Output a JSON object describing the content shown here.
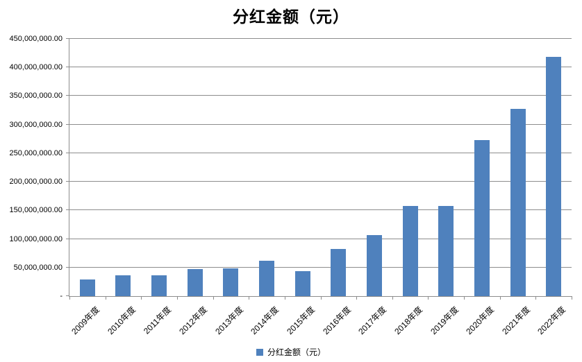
{
  "title": "分红金额（元）",
  "legend": {
    "label": "分红金额（元）"
  },
  "colors": {
    "bar": "#4F81BD",
    "grid": "#8C8C8C",
    "axis": "#8C8C8C",
    "text": "#000000"
  },
  "chart_data": {
    "type": "bar",
    "title": "分红金额（元）",
    "series_name": "分红金额（元）",
    "categories": [
      "2009年度",
      "2010年度",
      "2011年度",
      "2012年度",
      "2013年度",
      "2014年度",
      "2015年度",
      "2016年度",
      "2017年度",
      "2018年度",
      "2019年度",
      "2020年度",
      "2021年度",
      "2022年度"
    ],
    "values": [
      29000000,
      37000000,
      37000000,
      47000000,
      48000000,
      62000000,
      44000000,
      82000000,
      107000000,
      158000000,
      158000000,
      273000000,
      327000000,
      418000000
    ],
    "ylim": [
      0,
      450000000
    ],
    "ytick_step": 50000000,
    "ytick_labels": [
      "-",
      "50,000,000.00",
      "100,000,000.00",
      "150,000,000.00",
      "200,000,000.00",
      "250,000,000.00",
      "300,000,000.00",
      "350,000,000.00",
      "400,000,000.00",
      "450,000,000.00"
    ],
    "grid": true,
    "legend_position": "bottom"
  }
}
